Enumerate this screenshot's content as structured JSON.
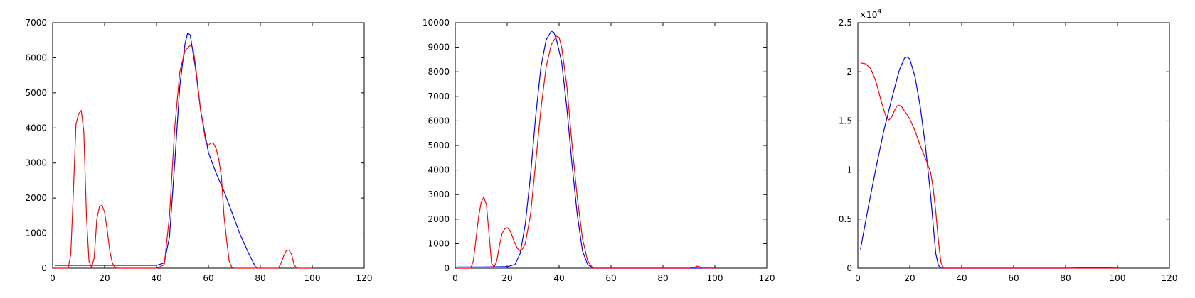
{
  "chart_data": [
    {
      "type": "line",
      "title": "",
      "xlabel": "",
      "ylabel": "",
      "xlim": [
        0,
        120
      ],
      "ylim": [
        0,
        7000
      ],
      "xticks": [
        0,
        20,
        40,
        60,
        80,
        100,
        120
      ],
      "yticks": [
        0,
        1000,
        2000,
        3000,
        4000,
        5000,
        6000,
        7000
      ],
      "ytick_labels": [
        "0",
        "1000",
        "2000",
        "3000",
        "4000",
        "5000",
        "6000",
        "7000"
      ],
      "exponent_label": "",
      "series": [
        {
          "color": "#0000ff",
          "x": [
            1,
            10,
            20,
            30,
            40,
            43,
            45,
            47,
            49,
            51,
            52,
            53,
            55,
            57,
            60,
            63,
            66,
            69,
            72,
            75,
            78,
            79
          ],
          "y": [
            80,
            80,
            80,
            80,
            80,
            150,
            900,
            3000,
            5200,
            6400,
            6700,
            6650,
            5700,
            4500,
            3300,
            2700,
            2200,
            1600,
            1000,
            500,
            50,
            0
          ]
        },
        {
          "color": "#ff0000",
          "x": [
            1,
            6,
            7,
            8,
            9,
            10,
            11,
            12,
            13,
            14,
            15,
            16,
            17,
            18,
            19,
            20,
            21,
            22,
            23,
            24,
            25,
            30,
            40,
            43,
            45,
            47,
            49,
            51,
            53,
            54,
            55,
            57,
            59,
            60,
            61,
            62,
            63,
            64,
            65,
            66,
            67,
            68,
            69,
            70,
            75,
            80,
            85,
            87,
            88,
            89,
            90,
            91,
            92,
            93,
            94,
            96,
            100
          ],
          "y": [
            0,
            0,
            400,
            2200,
            4100,
            4400,
            4500,
            3900,
            1500,
            200,
            20,
            300,
            1400,
            1750,
            1800,
            1600,
            1100,
            500,
            150,
            20,
            0,
            0,
            0,
            100,
            1500,
            4000,
            5600,
            6200,
            6350,
            6300,
            5800,
            4500,
            3600,
            3500,
            3580,
            3550,
            3400,
            3100,
            2600,
            1500,
            800,
            200,
            20,
            0,
            0,
            0,
            0,
            0,
            150,
            350,
            500,
            520,
            400,
            100,
            0,
            0,
            0
          ]
        }
      ]
    },
    {
      "type": "line",
      "title": "",
      "xlabel": "",
      "ylabel": "",
      "xlim": [
        0,
        120
      ],
      "ylim": [
        0,
        10000
      ],
      "xticks": [
        0,
        20,
        40,
        60,
        80,
        100,
        120
      ],
      "yticks": [
        0,
        1000,
        2000,
        3000,
        4000,
        5000,
        6000,
        7000,
        8000,
        9000,
        10000
      ],
      "ytick_labels": [
        "0",
        "1000",
        "2000",
        "3000",
        "4000",
        "5000",
        "6000",
        "7000",
        "8000",
        "9000",
        "10000"
      ],
      "exponent_label": "",
      "series": [
        {
          "color": "#0000ff",
          "x": [
            1,
            10,
            20,
            23,
            25,
            27,
            29,
            31,
            33,
            35,
            37,
            38,
            39,
            41,
            43,
            45,
            47,
            49,
            51,
            53,
            60,
            80,
            100
          ],
          "y": [
            50,
            50,
            60,
            150,
            600,
            1800,
            3800,
            6200,
            8200,
            9300,
            9650,
            9600,
            9300,
            8400,
            6500,
            4200,
            2200,
            700,
            150,
            0,
            0,
            0,
            0
          ],
          "ytick_labels_note": ""
        },
        {
          "color": "#ff0000",
          "x": [
            1,
            6,
            7,
            8,
            9,
            10,
            11,
            12,
            13,
            14,
            15,
            16,
            17,
            18,
            19,
            20,
            21,
            22,
            23,
            24,
            25,
            26,
            27,
            29,
            31,
            33,
            35,
            37,
            39,
            40,
            41,
            43,
            45,
            47,
            49,
            51,
            53,
            60,
            90,
            92,
            93,
            94,
            95,
            100
          ],
          "y": [
            0,
            0,
            300,
            1200,
            2100,
            2700,
            2900,
            2600,
            1400,
            200,
            50,
            300,
            900,
            1400,
            1600,
            1650,
            1550,
            1300,
            1000,
            800,
            700,
            800,
            1000,
            2200,
            4300,
            6500,
            8200,
            9100,
            9450,
            9400,
            9000,
            7400,
            5000,
            2900,
            1200,
            300,
            0,
            0,
            0,
            30,
            80,
            60,
            10,
            0
          ]
        }
      ]
    },
    {
      "type": "line",
      "title": "",
      "xlabel": "",
      "ylabel": "",
      "xlim": [
        0,
        120
      ],
      "ylim": [
        0,
        25000
      ],
      "xticks": [
        0,
        20,
        40,
        60,
        80,
        100,
        120
      ],
      "yticks": [
        0,
        5000,
        10000,
        15000,
        20000,
        25000
      ],
      "ytick_labels": [
        "0",
        "0.5",
        "1",
        "1.5",
        "2",
        "2.5"
      ],
      "exponent_label": "×10",
      "exponent_power": "4",
      "series": [
        {
          "color": "#0000ff",
          "x": [
            1,
            4,
            7,
            10,
            13,
            16,
            18,
            19,
            20,
            22,
            24,
            26,
            28,
            29,
            30,
            31,
            32,
            34,
            40,
            60,
            80,
            100
          ],
          "y": [
            1900,
            6200,
            10200,
            14000,
            17200,
            20200,
            21400,
            21500,
            21300,
            19500,
            16500,
            12500,
            7500,
            4500,
            1500,
            300,
            0,
            0,
            0,
            0,
            0,
            100
          ]
        },
        {
          "color": "#ff0000",
          "x": [
            1,
            3,
            5,
            7,
            9,
            11,
            12,
            13,
            14,
            15,
            16,
            17,
            18,
            20,
            22,
            24,
            26,
            28,
            29,
            30,
            31,
            32,
            33,
            40,
            60,
            80,
            100
          ],
          "y": [
            20900,
            20800,
            20300,
            19000,
            17000,
            15300,
            15100,
            15400,
            16000,
            16500,
            16600,
            16400,
            16000,
            15200,
            14000,
            12500,
            11200,
            9800,
            8200,
            5800,
            2800,
            600,
            0,
            0,
            0,
            0,
            0
          ]
        }
      ]
    }
  ]
}
